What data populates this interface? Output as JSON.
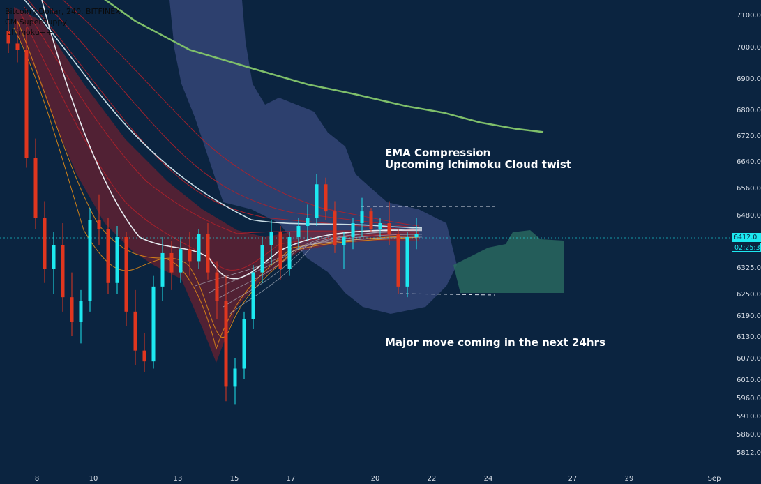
{
  "legend": {
    "symbol_line": "Bitcoin / Dollar, 240, BITFINEX",
    "indicator_1": "CM SuperGuppy",
    "indicator_2": "Ichimoku++"
  },
  "annotations": {
    "compression_line1": "EMA Compression",
    "compression_line2": "Upcoming Ichimoku Cloud twist",
    "major_move": "Major move coming in the next 24hrs"
  },
  "last_price": {
    "value": "6412.0",
    "countdown": "02:25:30"
  },
  "colors": {
    "background": "#0b2440",
    "bull": "#1de8f0",
    "bear": "#e0361f",
    "cloud_bear": "#3a4a7e",
    "cloud_bull": "#2a6b60",
    "ma200": "#7fbf6a",
    "guppy_fast": "#e08a16",
    "guppy_slow": "#b3202a",
    "guppy_gray": "#b9c1cc"
  },
  "chart_data": {
    "type": "candlestick",
    "symbol": "Bitcoin / Dollar",
    "interval": "240",
    "exchange": "BITFINEX",
    "y_ticks": [
      "7100.0",
      "7000.0",
      "6900.0",
      "6800.0",
      "6720.0",
      "6640.0",
      "6560.0",
      "6480.0",
      "6400.0",
      "6325.0",
      "6250.0",
      "6190.0",
      "6130.0",
      "6070.0",
      "6010.0",
      "5960.0",
      "5910.0",
      "5860.0",
      "5812.0"
    ],
    "x_ticks": [
      "8",
      "10",
      "13",
      "15",
      "17",
      "20",
      "22",
      "24",
      "27",
      "29",
      "Sep"
    ],
    "ylim": [
      5790,
      7180
    ],
    "ohlc": [
      [
        7050,
        7120,
        6980,
        7010
      ],
      [
        7010,
        7080,
        6950,
        6990
      ],
      [
        6990,
        7060,
        6620,
        6650
      ],
      [
        6650,
        6710,
        6430,
        6470
      ],
      [
        6470,
        6520,
        6280,
        6320
      ],
      [
        6320,
        6420,
        6250,
        6380
      ],
      [
        6380,
        6450,
        6200,
        6240
      ],
      [
        6240,
        6310,
        6130,
        6170
      ],
      [
        6170,
        6260,
        6110,
        6230
      ],
      [
        6230,
        6500,
        6200,
        6460
      ],
      [
        6460,
        6540,
        6380,
        6430
      ],
      [
        6430,
        6470,
        6250,
        6280
      ],
      [
        6280,
        6440,
        6250,
        6400
      ],
      [
        6400,
        6420,
        6160,
        6200
      ],
      [
        6200,
        6260,
        6050,
        6090
      ],
      [
        6090,
        6140,
        6030,
        6060
      ],
      [
        6060,
        6300,
        6040,
        6270
      ],
      [
        6270,
        6400,
        6230,
        6360
      ],
      [
        6360,
        6390,
        6260,
        6310
      ],
      [
        6310,
        6400,
        6280,
        6370
      ],
      [
        6370,
        6420,
        6300,
        6340
      ],
      [
        6340,
        6430,
        6320,
        6410
      ],
      [
        6410,
        6450,
        6290,
        6310
      ],
      [
        6310,
        6340,
        6180,
        6230
      ],
      [
        6230,
        6300,
        5950,
        5990
      ],
      [
        5990,
        6070,
        5940,
        6040
      ],
      [
        6040,
        6200,
        6010,
        6180
      ],
      [
        6180,
        6330,
        6150,
        6310
      ],
      [
        6310,
        6400,
        6280,
        6380
      ],
      [
        6380,
        6460,
        6330,
        6420
      ],
      [
        6420,
        6440,
        6290,
        6320
      ],
      [
        6320,
        6420,
        6300,
        6400
      ],
      [
        6400,
        6470,
        6370,
        6440
      ],
      [
        6440,
        6510,
        6390,
        6470
      ],
      [
        6470,
        6600,
        6440,
        6570
      ],
      [
        6570,
        6590,
        6460,
        6490
      ],
      [
        6490,
        6520,
        6360,
        6380
      ],
      [
        6380,
        6420,
        6320,
        6400
      ],
      [
        6400,
        6470,
        6370,
        6450
      ],
      [
        6450,
        6530,
        6400,
        6490
      ],
      [
        6490,
        6500,
        6420,
        6430
      ],
      [
        6430,
        6470,
        6400,
        6450
      ],
      [
        6450,
        6520,
        6380,
        6410
      ],
      [
        6410,
        6430,
        6250,
        6270
      ],
      [
        6270,
        6420,
        6240,
        6400
      ],
      [
        6400,
        6470,
        6370,
        6412
      ]
    ],
    "ma200": [
      [
        6,
        7240
      ],
      [
        14,
        7080
      ],
      [
        20,
        6990
      ],
      [
        27,
        6930
      ],
      [
        33,
        6880
      ],
      [
        38,
        6850
      ],
      [
        44,
        6810
      ],
      [
        48,
        6790
      ],
      [
        52,
        6760
      ],
      [
        56,
        6740
      ],
      [
        59,
        6730
      ]
    ],
    "series": [
      {
        "name": "EMA Compression",
        "type": "annotation",
        "note": "Upcoming Ichimoku Cloud twist"
      },
      {
        "name": "Major move coming in the next 24hrs",
        "type": "annotation"
      }
    ]
  }
}
